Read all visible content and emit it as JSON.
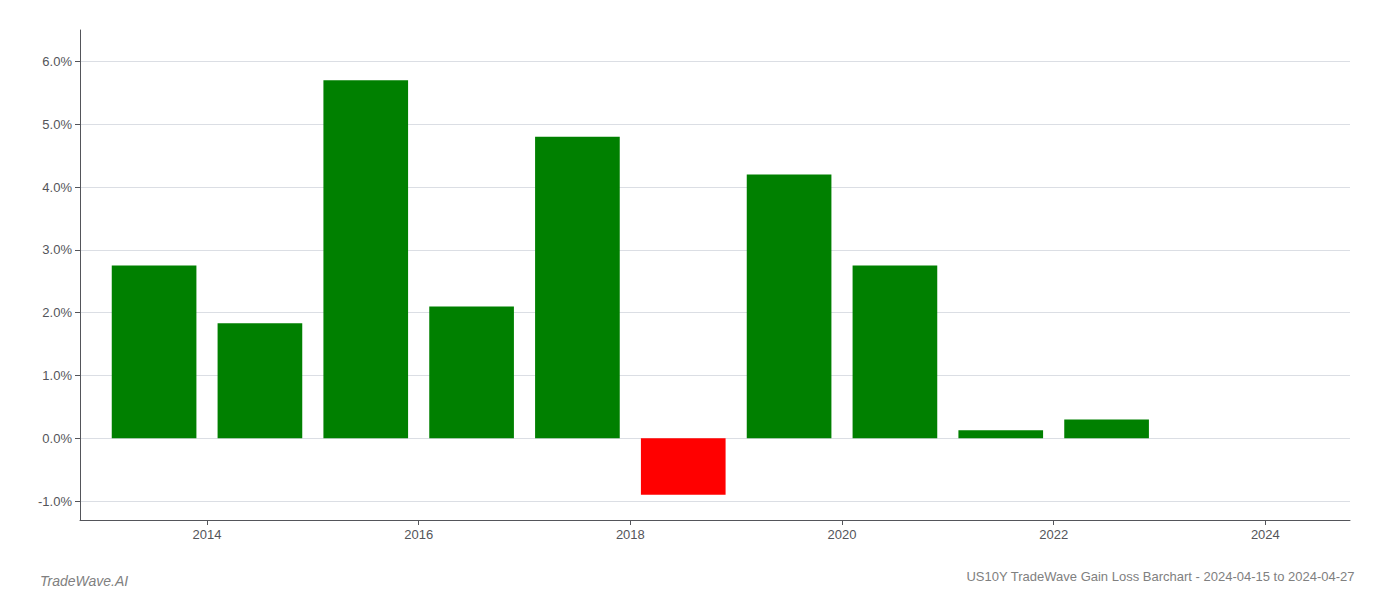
{
  "chart_data": {
    "type": "bar",
    "title": "US10Y TradeWave Gain Loss Barchart - 2024-04-15 to 2024-04-27",
    "annotations": [
      "TradeWave.AI"
    ],
    "x": [
      2013.5,
      2014.5,
      2015.5,
      2016.5,
      2017.5,
      2018.5,
      2019.5,
      2020.5,
      2021.5,
      2022.5,
      2023.5
    ],
    "values": [
      0.0275,
      0.0183,
      0.057,
      0.021,
      0.048,
      -0.009,
      0.042,
      0.0275,
      0.0013,
      0.003,
      0.0
    ],
    "colors": [
      "#008000",
      "#008000",
      "#008000",
      "#008000",
      "#008000",
      "#ff0000",
      "#008000",
      "#008000",
      "#008000",
      "#008000",
      "#008000"
    ],
    "xlim": [
      2012.8,
      2024.8
    ],
    "xticks": [
      2014,
      2016,
      2018,
      2020,
      2022,
      2024
    ],
    "ylim": [
      -0.013,
      0.065
    ],
    "yticks": [
      {
        "value": -0.01,
        "label": "-1.0%"
      },
      {
        "value": 0.0,
        "label": "0.0%"
      },
      {
        "value": 0.01,
        "label": "1.0%"
      },
      {
        "value": 0.02,
        "label": "2.0%"
      },
      {
        "value": 0.03,
        "label": "3.0%"
      },
      {
        "value": 0.04,
        "label": "4.0%"
      },
      {
        "value": 0.05,
        "label": "5.0%"
      },
      {
        "value": 0.06,
        "label": "6.0%"
      }
    ],
    "grid": true
  }
}
